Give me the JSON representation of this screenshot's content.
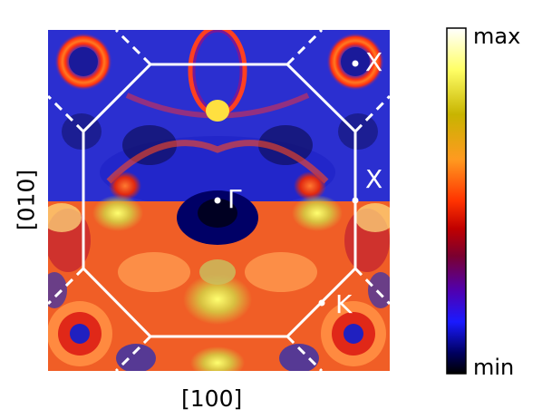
{
  "figure": {
    "x_axis_label": "[100]",
    "y_axis_label": "[010]",
    "points": [
      {
        "label": "Γ"
      },
      {
        "label": "X"
      },
      {
        "label": "X"
      },
      {
        "label": "K"
      }
    ],
    "colorbar": {
      "max_label": "max",
      "min_label": "min",
      "colormap": [
        "#ffffff",
        "#ffff66",
        "#c8b400",
        "#ff9a20",
        "#ff3300",
        "#c00000",
        "#7a0030",
        "#5000b0",
        "#1a1aff",
        "#000060",
        "#000000"
      ]
    }
  }
}
